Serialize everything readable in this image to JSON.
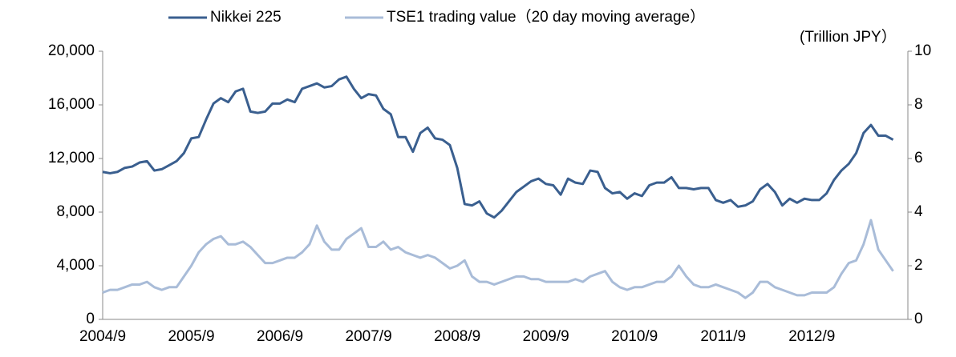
{
  "chart_data": {
    "type": "line",
    "x": [
      "2004/9",
      "2004/10",
      "2004/11",
      "2004/12",
      "2005/1",
      "2005/2",
      "2005/3",
      "2005/4",
      "2005/5",
      "2005/6",
      "2005/7",
      "2005/8",
      "2005/9",
      "2005/10",
      "2005/11",
      "2005/12",
      "2006/1",
      "2006/2",
      "2006/3",
      "2006/4",
      "2006/5",
      "2006/6",
      "2006/7",
      "2006/8",
      "2006/9",
      "2006/10",
      "2006/11",
      "2006/12",
      "2007/1",
      "2007/2",
      "2007/3",
      "2007/4",
      "2007/5",
      "2007/6",
      "2007/7",
      "2007/8",
      "2007/9",
      "2007/10",
      "2007/11",
      "2007/12",
      "2008/1",
      "2008/2",
      "2008/3",
      "2008/4",
      "2008/5",
      "2008/6",
      "2008/7",
      "2008/8",
      "2008/9",
      "2008/10",
      "2008/11",
      "2008/12",
      "2009/1",
      "2009/2",
      "2009/3",
      "2009/4",
      "2009/5",
      "2009/6",
      "2009/7",
      "2009/8",
      "2009/9",
      "2009/10",
      "2009/11",
      "2009/12",
      "2010/1",
      "2010/2",
      "2010/3",
      "2010/4",
      "2010/5",
      "2010/6",
      "2010/7",
      "2010/8",
      "2010/9",
      "2010/10",
      "2010/11",
      "2010/12",
      "2011/1",
      "2011/2",
      "2011/3",
      "2011/4",
      "2011/5",
      "2011/6",
      "2011/7",
      "2011/8",
      "2011/9",
      "2011/10",
      "2011/11",
      "2011/12",
      "2012/1",
      "2012/2",
      "2012/3",
      "2012/4",
      "2012/5",
      "2012/6",
      "2012/7",
      "2012/8",
      "2012/9",
      "2012/10",
      "2012/11",
      "2012/12",
      "2013/1",
      "2013/2",
      "2013/3",
      "2013/4",
      "2013/5",
      "2013/6",
      "2013/7",
      "2013/8"
    ],
    "series": [
      {
        "name": "Nikkei 225",
        "color": "#3a5f8f",
        "values": [
          11000,
          10900,
          11000,
          11300,
          11400,
          11700,
          11800,
          11100,
          11200,
          11500,
          11800,
          12400,
          13500,
          13600,
          14900,
          16100,
          16500,
          16200,
          17000,
          17200,
          15500,
          15400,
          15500,
          16100,
          16100,
          16400,
          16200,
          17200,
          17400,
          17600,
          17300,
          17400,
          17900,
          18100,
          17200,
          16500,
          16800,
          16700,
          15700,
          15300,
          13600,
          13600,
          12500,
          13900,
          14300,
          13500,
          13400,
          13000,
          11300,
          8600,
          8500,
          8800,
          7900,
          7600,
          8100,
          8800,
          9500,
          9900,
          10300,
          10500,
          10100,
          10000,
          9300,
          10500,
          10200,
          10100,
          11100,
          11000,
          9800,
          9400,
          9500,
          9000,
          9400,
          9200,
          10000,
          10200,
          10200,
          10600,
          9800,
          9800,
          9700,
          9800,
          9800,
          8900,
          8700,
          8900,
          8400,
          8500,
          8800,
          9700,
          10100,
          9500,
          8500,
          9000,
          8700,
          9000,
          8900,
          8900,
          9400,
          10400,
          11100,
          11600,
          12400,
          13900,
          14500,
          13700,
          13700,
          13400
        ]
      },
      {
        "name": "TSE1 trading value（20 day moving average）",
        "color": "#a9bcd8",
        "axis": "y2",
        "values": [
          1.0,
          1.1,
          1.1,
          1.2,
          1.3,
          1.3,
          1.4,
          1.2,
          1.1,
          1.2,
          1.2,
          1.6,
          2.0,
          2.5,
          2.8,
          3.0,
          3.1,
          2.8,
          2.8,
          2.9,
          2.7,
          2.4,
          2.1,
          2.1,
          2.2,
          2.3,
          2.3,
          2.5,
          2.8,
          3.5,
          2.9,
          2.6,
          2.6,
          3.0,
          3.2,
          3.4,
          2.7,
          2.7,
          2.9,
          2.6,
          2.7,
          2.5,
          2.4,
          2.3,
          2.4,
          2.3,
          2.1,
          1.9,
          2.0,
          2.2,
          1.6,
          1.4,
          1.4,
          1.3,
          1.4,
          1.5,
          1.6,
          1.6,
          1.5,
          1.5,
          1.4,
          1.4,
          1.4,
          1.4,
          1.5,
          1.4,
          1.6,
          1.7,
          1.8,
          1.4,
          1.2,
          1.1,
          1.2,
          1.2,
          1.3,
          1.4,
          1.4,
          1.6,
          2.0,
          1.6,
          1.3,
          1.2,
          1.2,
          1.3,
          1.2,
          1.1,
          1.0,
          0.8,
          1.0,
          1.4,
          1.4,
          1.2,
          1.1,
          1.0,
          0.9,
          0.9,
          1.0,
          1.0,
          1.0,
          1.2,
          1.7,
          2.1,
          2.2,
          2.8,
          3.7,
          2.6,
          2.2,
          1.8
        ]
      }
    ],
    "xticks": [
      "2004/9",
      "2005/9",
      "2006/9",
      "2007/9",
      "2008/9",
      "2009/9",
      "2010/9",
      "2011/9",
      "2012/9"
    ],
    "ylim": [
      0,
      20000
    ],
    "yticks": [
      0,
      {
        "value": 4000,
        "label": "4,000"
      },
      {
        "value": 8000,
        "label": "8,000"
      },
      {
        "value": 12000,
        "label": "12,000"
      },
      {
        "value": 16000,
        "label": "16,000"
      },
      {
        "value": 20000,
        "label": "20,000"
      }
    ],
    "y2lim": [
      0,
      10
    ],
    "y2ticks": [
      0,
      2,
      4,
      6,
      8,
      10
    ],
    "y2label": "(Trillion JPY）",
    "grid": false
  }
}
